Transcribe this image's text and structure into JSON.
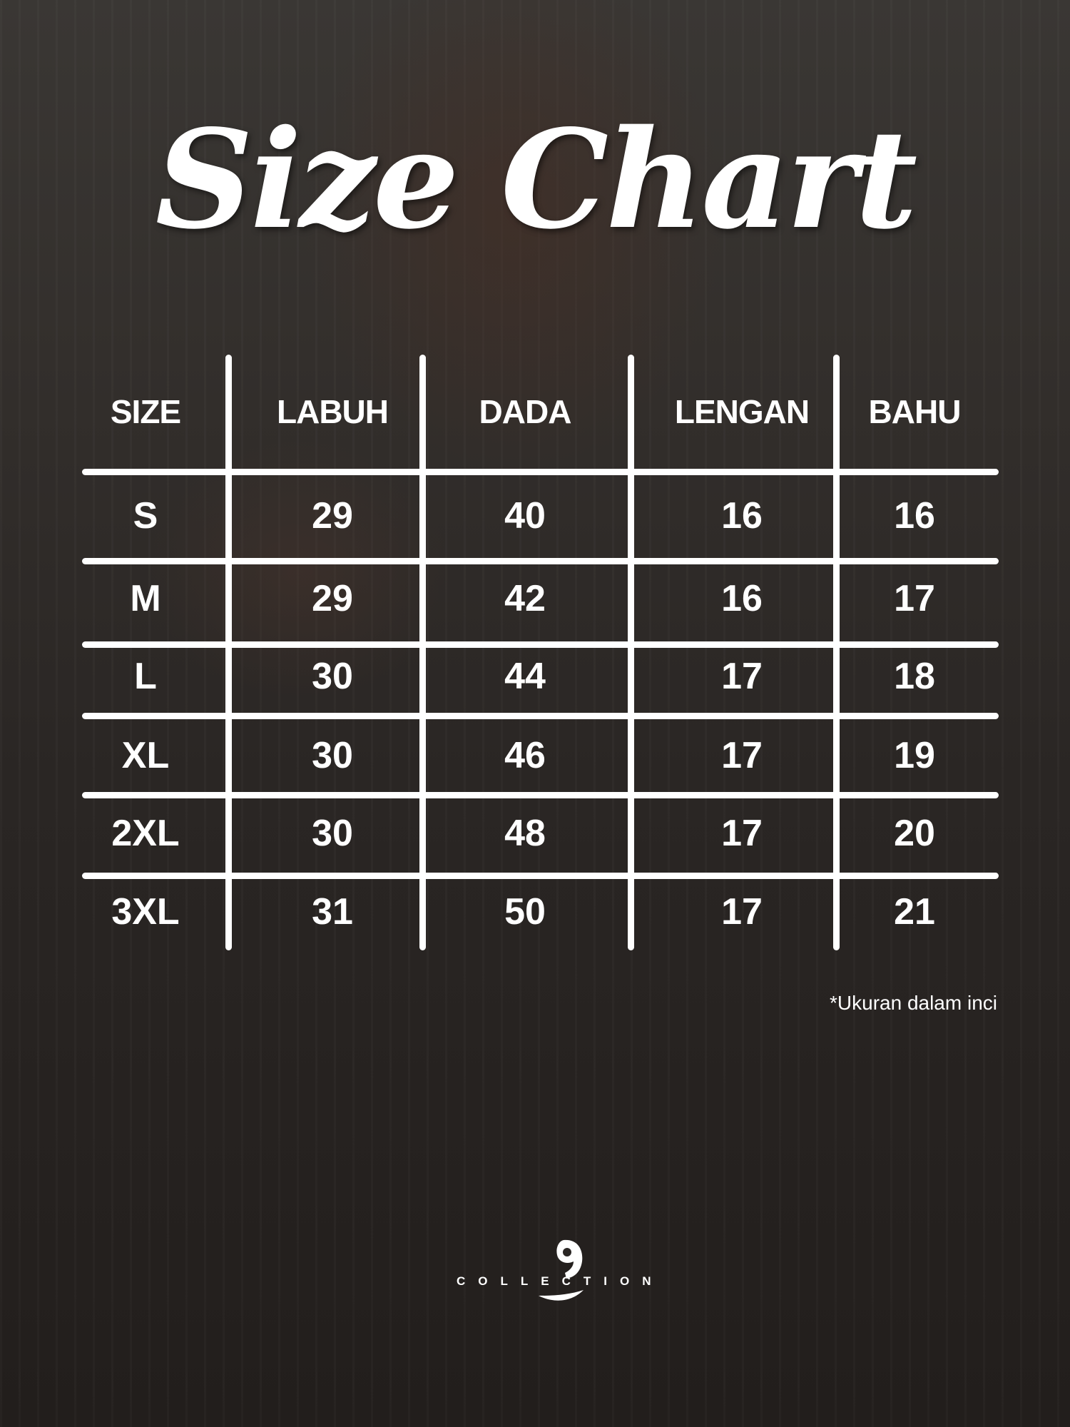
{
  "title": "Size Chart",
  "table": {
    "headers": [
      "SIZE",
      "LABUH",
      "DADA",
      "LENGAN",
      "BAHU"
    ],
    "rows": [
      [
        "S",
        "29",
        "40",
        "16",
        "16"
      ],
      [
        "M",
        "29",
        "42",
        "16",
        "17"
      ],
      [
        "L",
        "30",
        "44",
        "17",
        "18"
      ],
      [
        "XL",
        "30",
        "46",
        "17",
        "19"
      ],
      [
        "2XL",
        "30",
        "48",
        "17",
        "20"
      ],
      [
        "3XL",
        "31",
        "50",
        "17",
        "21"
      ]
    ]
  },
  "note": "*Ukuran dalam inci",
  "logo": {
    "text": "COLLECTION"
  }
}
